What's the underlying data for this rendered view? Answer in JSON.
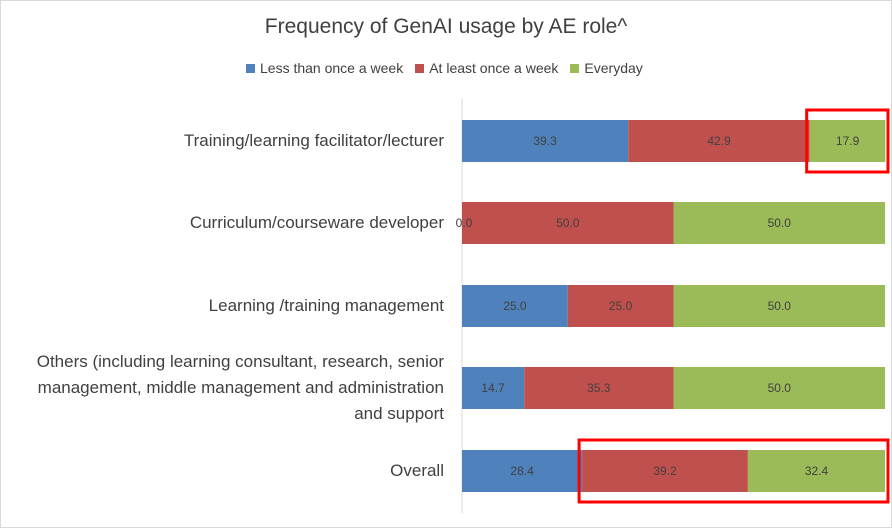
{
  "chart_data": {
    "type": "bar",
    "orientation": "horizontal",
    "stacked": true,
    "title": "Frequency of GenAI usage by AE role^",
    "categories": [
      [
        "Training/learning facilitator/lecturer"
      ],
      [
        "Curriculum/courseware developer"
      ],
      [
        "Learning /training management"
      ],
      [
        "Others (including learning consultant, research, senior",
        "management, middle management and administration",
        "and support"
      ],
      [
        "Overall"
      ]
    ],
    "series": [
      {
        "name": "Less than once a week",
        "color": "#4f81bd",
        "values": [
          39.3,
          0.0,
          25.0,
          14.7,
          28.4
        ],
        "labels": [
          "39.3",
          "0.0",
          "25.0",
          "14.7",
          "28.4"
        ]
      },
      {
        "name": "At least once a week",
        "color": "#c0504d",
        "values": [
          42.9,
          50.0,
          25.0,
          35.3,
          39.2
        ],
        "labels": [
          "42.9",
          "50.0",
          "25.0",
          "35.3",
          "39.2"
        ]
      },
      {
        "name": "Everyday",
        "color": "#9bbb59",
        "values": [
          17.9,
          50.0,
          50.0,
          50.0,
          32.4
        ],
        "labels": [
          "17.9",
          "50.0",
          "50.0",
          "50.0",
          "32.4"
        ]
      }
    ],
    "xlim": [
      0,
      100
    ],
    "legend_position": "top",
    "grid": false,
    "highlights": [
      {
        "color": "#ff0000",
        "category_index": 0,
        "series": [
          "Everyday"
        ]
      },
      {
        "color": "#ff0000",
        "category_index": 4,
        "series": [
          "At least once a week",
          "Everyday"
        ]
      }
    ]
  }
}
